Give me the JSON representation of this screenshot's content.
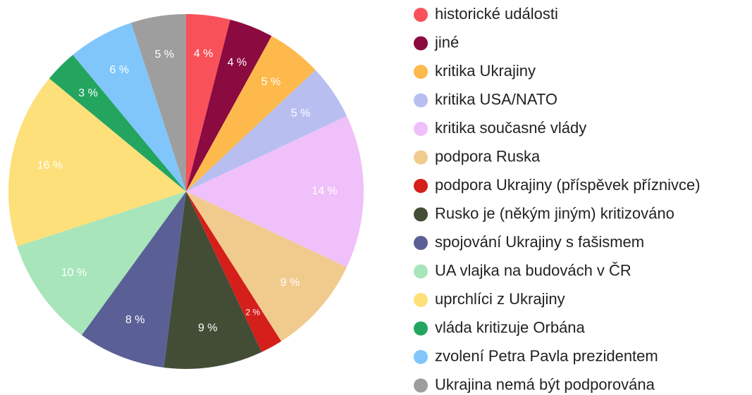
{
  "chart_data": {
    "type": "pie",
    "categories": [
      "historické události",
      "jiné",
      "kritika Ukrajiny",
      "kritika USA/NATO",
      "kritika současné vlády",
      "podpora Ruska",
      "podpora Ukrajiny (příspěvek příznivce)",
      "Rusko je (někým jiným) kritizováno",
      "spojování Ukrajiny s fašismem",
      "UA vlajka na budovách v ČR",
      "uprchlíci z Ukrajiny",
      "vláda kritizuje Orbána",
      "zvolení Petra Pavla prezidentem",
      "Ukrajina nemá být podporována"
    ],
    "values": [
      4,
      4,
      5,
      5,
      14,
      9,
      2,
      9,
      8,
      10,
      16,
      3,
      6,
      5
    ],
    "value_labels": [
      "4 %",
      "4 %",
      "5 %",
      "5 %",
      "14 %",
      "9 %",
      "2 %",
      "9 %",
      "8 %",
      "10 %",
      "16 %",
      "3 %",
      "6 %",
      "5 %"
    ],
    "colors": [
      "#f9515a",
      "#8b0a3f",
      "#fdb94b",
      "#b8bff0",
      "#f0c0fa",
      "#f1cb8e",
      "#d41f1b",
      "#434d36",
      "#5a6096",
      "#a8e5ba",
      "#fde07a",
      "#23a560",
      "#80c6fb",
      "#9e9e9e"
    ],
    "legend": "right"
  }
}
